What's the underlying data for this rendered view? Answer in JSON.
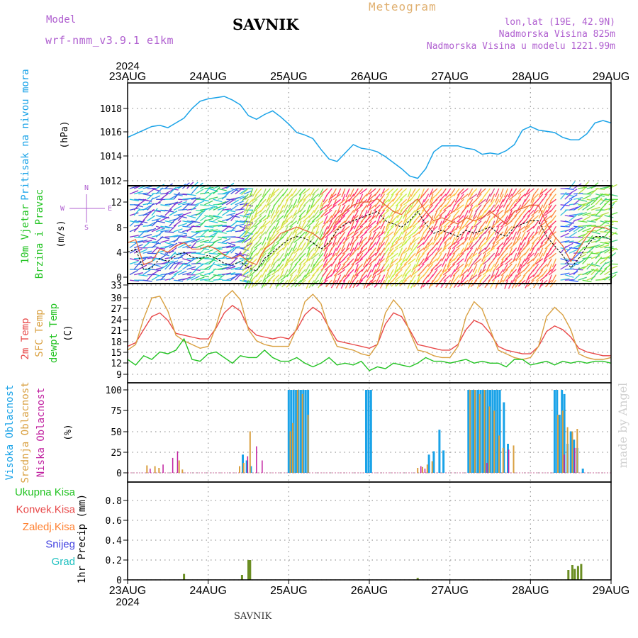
{
  "header": {
    "title": "SAVNIK",
    "product": "Meteogram",
    "model_label": "Model",
    "model_name": "wrf-nmm_v3.9.1 e1km",
    "coords": "lon,lat (19E, 42.9N)",
    "elevation": "Nadmorska Visina 825m",
    "model_elevation": "Nadmorska Visina u modelu 1221.99m",
    "credit": "made by Angel",
    "footer": "SAVNIK"
  },
  "time_axis": {
    "year": "2024",
    "labels": [
      "23AUG",
      "24AUG",
      "25AUG",
      "26AUG",
      "27AUG",
      "28AUG",
      "29AUG"
    ]
  },
  "colors": {
    "pressure": "#1aa3e8",
    "t2m": "#e84848",
    "tsfc": "#d9a040",
    "dew": "#22c322",
    "high_cloud": "#1aa3e8",
    "mid_cloud": "#d9a040",
    "low_cloud": "#c020a0",
    "precip_total": "#6b8e23",
    "precip_conv": "#e84848",
    "precip_frozen": "#ff8030"
  },
  "panels": {
    "pressure": {
      "label": "Pritisak na nivou mora",
      "unit": "(hPa)"
    },
    "wind": {
      "label1": "10m Vjetar",
      "label2": "Brzina i Pravac",
      "unit": "(m/s)",
      "compass_n": "N",
      "compass_s": "S",
      "compass_w": "W",
      "compass_e": "E"
    },
    "temp": {
      "label1": "2m Temp",
      "label2": "SFC Temp",
      "label3": "dewpt Temp",
      "unit": "(C)"
    },
    "cloud": {
      "label1": "Visoka Oblacnost",
      "label2": "Srednja Oblacnost",
      "label3": "Niska Oblacnost",
      "unit": "(%)"
    },
    "precip": {
      "labels": [
        "Ukupna Kisa",
        "Konvek.Kisa",
        "Zaledj.Kisa",
        "Snijeg",
        "Grad"
      ],
      "unit": "1hr Precip (mm)"
    }
  },
  "chart_data": [
    {
      "type": "line",
      "name_key": "pressure",
      "ylim": [
        1012,
        1020
      ],
      "yticks": [
        "1012",
        "1014",
        "1016",
        "1018"
      ],
      "x_days": [
        0,
        0.1,
        0.2,
        0.3,
        0.4,
        0.5,
        0.6,
        0.7,
        0.8,
        0.9,
        1.0,
        1.1,
        1.2,
        1.3,
        1.4,
        1.5,
        1.6,
        1.7,
        1.8,
        1.9,
        2.0,
        2.1,
        2.2,
        2.3,
        2.4,
        2.5,
        2.6,
        2.7,
        2.8,
        2.9,
        3.0,
        3.1,
        3.2,
        3.3,
        3.4,
        3.5,
        3.6,
        3.7,
        3.8,
        3.9,
        4.0,
        4.1,
        4.2,
        4.3,
        4.4,
        4.5,
        4.6,
        4.7,
        4.8,
        4.9,
        5.0,
        5.1,
        5.2,
        5.3,
        5.4,
        5.5,
        5.6,
        5.7,
        5.8,
        5.9,
        6.0
      ],
      "values": [
        1015.6,
        1015.9,
        1016.2,
        1016.5,
        1016.6,
        1016.4,
        1016.8,
        1017.2,
        1018.0,
        1018.6,
        1018.8,
        1018.9,
        1019.0,
        1018.7,
        1018.3,
        1017.4,
        1017.1,
        1017.5,
        1017.8,
        1017.3,
        1016.7,
        1016.0,
        1015.8,
        1015.5,
        1014.6,
        1013.8,
        1013.6,
        1014.3,
        1015.0,
        1014.7,
        1014.6,
        1014.4,
        1014.0,
        1013.5,
        1013.0,
        1012.4,
        1012.2,
        1013.0,
        1014.4,
        1014.9,
        1014.9,
        1014.9,
        1014.7,
        1014.6,
        1014.2,
        1014.3,
        1014.2,
        1014.5,
        1015.0,
        1016.2,
        1016.5,
        1016.2,
        1016.1,
        1016.0,
        1015.6,
        1015.4,
        1015.4,
        1015.9,
        1016.8,
        1017.0,
        1016.8
      ]
    },
    {
      "type": "line",
      "name_key": "wind",
      "ylim": [
        0,
        14
      ],
      "yticks": [
        "0",
        "4",
        "8",
        "12"
      ],
      "x_days": [
        0,
        0.1,
        0.2,
        0.3,
        0.4,
        0.5,
        0.6,
        0.7,
        0.8,
        0.9,
        1.0,
        1.1,
        1.2,
        1.3,
        1.4,
        1.5,
        1.6,
        1.7,
        1.8,
        1.9,
        2.0,
        2.1,
        2.2,
        2.3,
        2.4,
        2.5,
        2.6,
        2.7,
        2.8,
        2.9,
        3.0,
        3.1,
        3.2,
        3.3,
        3.4,
        3.5,
        3.6,
        3.7,
        3.8,
        3.9,
        4.0,
        4.1,
        4.2,
        4.3,
        4.4,
        4.5,
        4.6,
        4.7,
        4.8,
        4.9,
        5.0,
        5.1,
        5.2,
        5.3,
        5.4,
        5.5,
        5.6,
        5.7,
        5.8,
        5.9,
        6.0
      ],
      "values": [
        4.0,
        4.5,
        1.2,
        1.5,
        3.0,
        2.5,
        3.5,
        4.0,
        3.2,
        3.0,
        3.5,
        3.0,
        2.2,
        2.0,
        2.5,
        1.5,
        1.0,
        3.0,
        4.0,
        5.0,
        6.0,
        6.5,
        6.2,
        5.5,
        4.5,
        5.5,
        7.5,
        8.5,
        9.0,
        9.5,
        10.0,
        10.5,
        9.0,
        8.5,
        8.0,
        9.0,
        10.5,
        8.5,
        7.0,
        7.5,
        7.0,
        6.5,
        7.5,
        7.0,
        7.5,
        8.0,
        7.0,
        6.5,
        8.0,
        8.5,
        9.0,
        9.0,
        6.5,
        5.0,
        3.5,
        1.5,
        3.0,
        5.0,
        6.5,
        6.5,
        6.0
      ],
      "gust": [
        5.5,
        6.0,
        2.0,
        2.5,
        4.5,
        4.0,
        5.0,
        5.5,
        4.5,
        4.5,
        5.0,
        4.5,
        3.5,
        3.0,
        3.5,
        2.5,
        2.0,
        4.5,
        5.5,
        7.0,
        7.5,
        8.0,
        7.5,
        7.0,
        6.0,
        7.5,
        9.5,
        10.5,
        11.5,
        12.0,
        12.0,
        12.5,
        11.5,
        10.5,
        10.0,
        11.5,
        12.5,
        10.5,
        9.0,
        9.5,
        9.0,
        8.5,
        9.5,
        9.0,
        9.5,
        10.5,
        9.5,
        8.5,
        10.5,
        11.0,
        11.5,
        11.5,
        8.5,
        6.5,
        5.0,
        2.5,
        4.5,
        6.5,
        8.0,
        8.0,
        7.5
      ]
    },
    {
      "type": "line",
      "name_key": "temp",
      "ylim": [
        7,
        33
      ],
      "yticks": [
        "9",
        "12",
        "15",
        "18",
        "21",
        "24",
        "27",
        "30",
        "33"
      ],
      "x_days": [
        0,
        0.1,
        0.2,
        0.3,
        0.4,
        0.5,
        0.6,
        0.7,
        0.8,
        0.9,
        1.0,
        1.1,
        1.2,
        1.3,
        1.4,
        1.5,
        1.6,
        1.7,
        1.8,
        1.9,
        2.0,
        2.1,
        2.2,
        2.3,
        2.4,
        2.5,
        2.6,
        2.7,
        2.8,
        2.9,
        3.0,
        3.1,
        3.2,
        3.3,
        3.4,
        3.5,
        3.6,
        3.7,
        3.8,
        3.9,
        4.0,
        4.1,
        4.2,
        4.3,
        4.4,
        4.5,
        4.6,
        4.7,
        4.8,
        4.9,
        5.0,
        5.1,
        5.2,
        5.3,
        5.4,
        5.5,
        5.6,
        5.7,
        5.8,
        5.9,
        6.0
      ],
      "series": [
        {
          "key": "t2m",
          "values": [
            16.5,
            17.5,
            21.0,
            24.5,
            25.5,
            23.5,
            20.0,
            19.5,
            19.0,
            18.5,
            18.5,
            21.5,
            25.5,
            27.5,
            26.0,
            21.5,
            19.5,
            19.0,
            18.5,
            19.0,
            18.5,
            21.0,
            25.0,
            27.0,
            25.5,
            21.5,
            18.0,
            17.5,
            17.0,
            16.5,
            16.0,
            17.0,
            22.5,
            25.5,
            24.5,
            21.0,
            17.0,
            16.5,
            16.0,
            15.5,
            15.5,
            17.0,
            21.0,
            23.5,
            22.5,
            20.0,
            16.5,
            15.5,
            15.0,
            14.5,
            14.5,
            16.5,
            20.5,
            22.0,
            21.0,
            19.0,
            16.0,
            15.0,
            14.5,
            14.0,
            14.0
          ]
        },
        {
          "key": "tsfc",
          "values": [
            15.5,
            17.0,
            24.0,
            29.5,
            30.0,
            26.0,
            19.5,
            18.0,
            17.0,
            16.0,
            16.5,
            22.0,
            29.5,
            31.5,
            29.0,
            21.0,
            18.0,
            17.0,
            16.5,
            16.5,
            16.5,
            21.5,
            28.5,
            30.5,
            28.0,
            21.0,
            16.5,
            16.0,
            15.5,
            14.5,
            14.0,
            17.0,
            25.5,
            29.0,
            26.5,
            20.5,
            15.5,
            15.0,
            14.0,
            13.5,
            13.5,
            16.5,
            24.5,
            28.5,
            26.5,
            21.0,
            15.5,
            14.5,
            13.5,
            13.0,
            13.5,
            16.5,
            24.5,
            27.0,
            25.0,
            21.0,
            14.5,
            13.5,
            13.0,
            13.0,
            13.5
          ]
        },
        {
          "key": "dew",
          "values": [
            13.0,
            11.5,
            14.0,
            13.0,
            15.0,
            14.5,
            15.5,
            18.5,
            13.0,
            12.5,
            14.5,
            15.0,
            13.5,
            12.0,
            14.0,
            13.5,
            13.5,
            15.5,
            13.5,
            12.5,
            12.5,
            13.5,
            12.0,
            11.0,
            12.0,
            13.5,
            11.5,
            12.0,
            11.5,
            12.5,
            10.0,
            11.0,
            10.5,
            12.0,
            11.5,
            11.0,
            12.0,
            13.5,
            12.5,
            12.5,
            12.0,
            12.5,
            13.0,
            12.0,
            12.5,
            12.0,
            12.0,
            11.0,
            13.0,
            13.0,
            11.5,
            12.0,
            12.5,
            11.5,
            12.5,
            12.0,
            12.5,
            12.0,
            12.5,
            12.5,
            12.0
          ]
        }
      ]
    },
    {
      "type": "bar",
      "name_key": "cloud",
      "ylim": [
        0,
        100
      ],
      "yticks": [
        "0",
        "25",
        "50",
        "75",
        "100"
      ],
      "series": [
        {
          "key": "high",
          "x_days": [
            1.43,
            1.48,
            1.53,
            2.0,
            2.03,
            2.06,
            2.09,
            2.12,
            2.15,
            2.18,
            2.21,
            2.24,
            2.96,
            2.99,
            3.02,
            3.74,
            3.8,
            3.87,
            3.92,
            4.23,
            4.26,
            4.29,
            4.32,
            4.35,
            4.38,
            4.41,
            4.44,
            4.47,
            4.5,
            4.53,
            4.56,
            4.59,
            4.62,
            4.67,
            4.72,
            5.3,
            5.33,
            5.36,
            5.39,
            5.42,
            5.46,
            5.5,
            5.54,
            5.58,
            5.65
          ],
          "values": [
            22,
            15,
            8,
            100,
            100,
            100,
            100,
            100,
            100,
            100,
            100,
            100,
            100,
            100,
            100,
            22,
            26,
            52,
            27,
            100,
            100,
            100,
            100,
            100,
            100,
            100,
            100,
            100,
            100,
            100,
            100,
            100,
            100,
            85,
            35,
            100,
            100,
            70,
            100,
            95,
            35,
            50,
            40,
            30,
            5
          ]
        },
        {
          "key": "mid",
          "x_days": [
            0.24,
            0.34,
            0.39,
            0.64,
            0.68,
            1.39,
            1.44,
            1.52,
            2.05,
            2.11,
            2.17,
            2.24,
            2.02,
            3.6,
            3.66,
            3.72,
            3.78,
            4.25,
            4.31,
            4.37,
            4.43,
            4.49,
            4.55,
            4.61,
            4.66,
            4.79,
            5.34,
            5.4,
            5.46,
            5.52,
            5.58
          ],
          "values": [
            9,
            8,
            6,
            15,
            4,
            8,
            12,
            50,
            60,
            100,
            95,
            70,
            50,
            6,
            7,
            10,
            14,
            100,
            100,
            95,
            100,
            80,
            75,
            45,
            30,
            33,
            70,
            75,
            55,
            50,
            53
          ]
        },
        {
          "key": "low",
          "x_days": [
            0.28,
            0.44,
            0.56,
            0.62,
            1.49,
            1.6,
            1.67,
            3.64,
            3.69,
            4.46,
            4.73,
            5.42,
            5.55
          ],
          "values": [
            5,
            10,
            18,
            26,
            20,
            32,
            15,
            8,
            5,
            12,
            28,
            22,
            30
          ]
        }
      ]
    },
    {
      "type": "bar",
      "name_key": "precip",
      "ylim": [
        0,
        0.95
      ],
      "yticks": [
        "0",
        "0.2",
        "0.4",
        "0.6",
        "0.8"
      ],
      "series": [
        {
          "key": "total",
          "x_days": [
            0.7,
            1.42,
            1.5,
            1.52,
            3.6,
            5.47,
            5.52,
            5.55,
            5.59,
            5.63
          ],
          "values": [
            0.06,
            0.05,
            0.2,
            0.2,
            0.02,
            0.1,
            0.15,
            0.11,
            0.14,
            0.16
          ]
        }
      ]
    }
  ]
}
